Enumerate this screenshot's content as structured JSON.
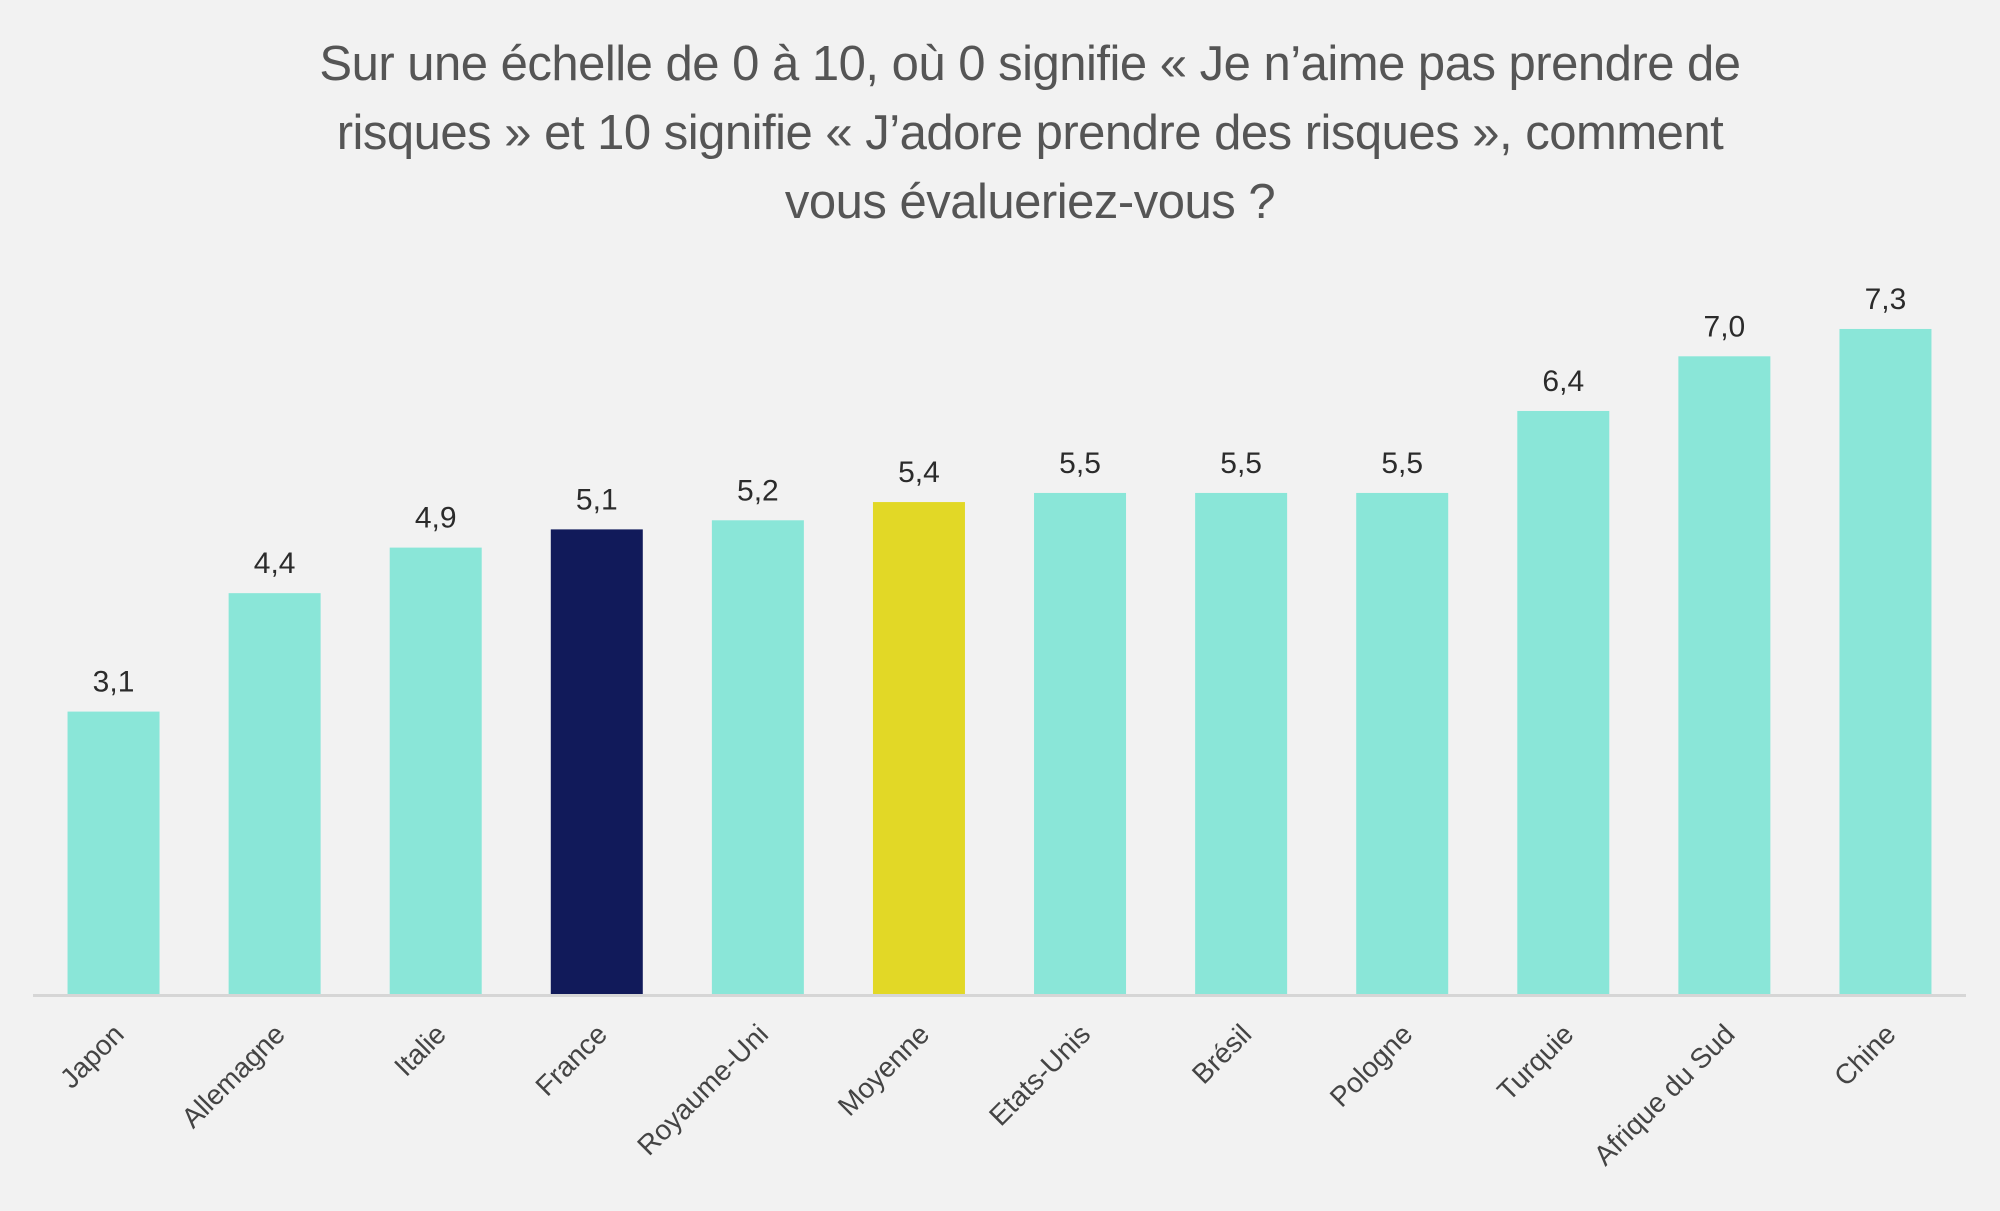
{
  "chart_data": {
    "type": "bar",
    "title": "Sur une échelle de 0 à 10, où 0 signifie « Je n’aime pas prendre de risques » et 10 signifie « J’adore prendre des risques », comment vous évalueriez-vous ?",
    "title_lines": [
      "Sur une échelle de 0 à 10, où 0 signifie « Je n’aime pas prendre de",
      "risques » et 10 signifie « J’adore prendre des risques », comment",
      "vous évalueriez-vous ?"
    ],
    "xlabel": "",
    "ylabel": "",
    "ylim": [
      0,
      7.3
    ],
    "grid": false,
    "legend": "none",
    "categories": [
      "Japon",
      "Allemagne",
      "Italie",
      "France",
      "Royaume-Uni",
      "Moyenne",
      "Etats-Unis",
      "Brésil",
      "Pologne",
      "Turquie",
      "Afrique du Sud",
      "Chine"
    ],
    "values": [
      3.1,
      4.4,
      4.9,
      5.1,
      5.2,
      5.4,
      5.5,
      5.5,
      5.5,
      6.4,
      7.0,
      7.3
    ],
    "value_labels": [
      "3,1",
      "4,4",
      "4,9",
      "5,1",
      "5,2",
      "5,4",
      "5,5",
      "5,5",
      "5,5",
      "6,4",
      "7,0",
      "7,3"
    ],
    "highlights": {
      "France": "#111a5a",
      "Moyenne": "#e2d826"
    },
    "colors": {
      "default_bar": "#8ae6d8",
      "axis": "#d6d6d6",
      "background": "#f2f2f2"
    }
  }
}
